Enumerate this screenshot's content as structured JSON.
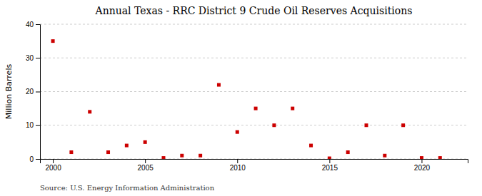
{
  "chart_data": {
    "type": "scatter",
    "title": "Annual Texas - RRC District 9 Crude Oil Reserves Acquisitions",
    "y_label": "Million Barrels",
    "annotations": [
      "Source: U.S. Energy Information Administration"
    ],
    "x": [
      2000,
      2001,
      2002,
      2003,
      2004,
      2005,
      2006,
      2007,
      2008,
      2009,
      2010,
      2011,
      2012,
      2013,
      2014,
      2015,
      2016,
      2017,
      2018,
      2019,
      2020,
      2021
    ],
    "values": [
      35,
      2,
      14,
      2,
      4,
      5,
      0.3,
      1,
      1,
      22,
      8,
      15,
      10,
      15,
      4,
      0.2,
      2,
      10,
      1,
      10,
      0.3,
      0.3
    ],
    "color": "#cc0000",
    "marker": "square",
    "xlim": [
      1999.3,
      2022.5
    ],
    "xticks": [
      2000,
      2005,
      2010,
      2015,
      2020
    ],
    "ylim": [
      0,
      40
    ],
    "yticks": [
      0,
      10,
      20,
      30,
      40
    ],
    "grid": true
  }
}
